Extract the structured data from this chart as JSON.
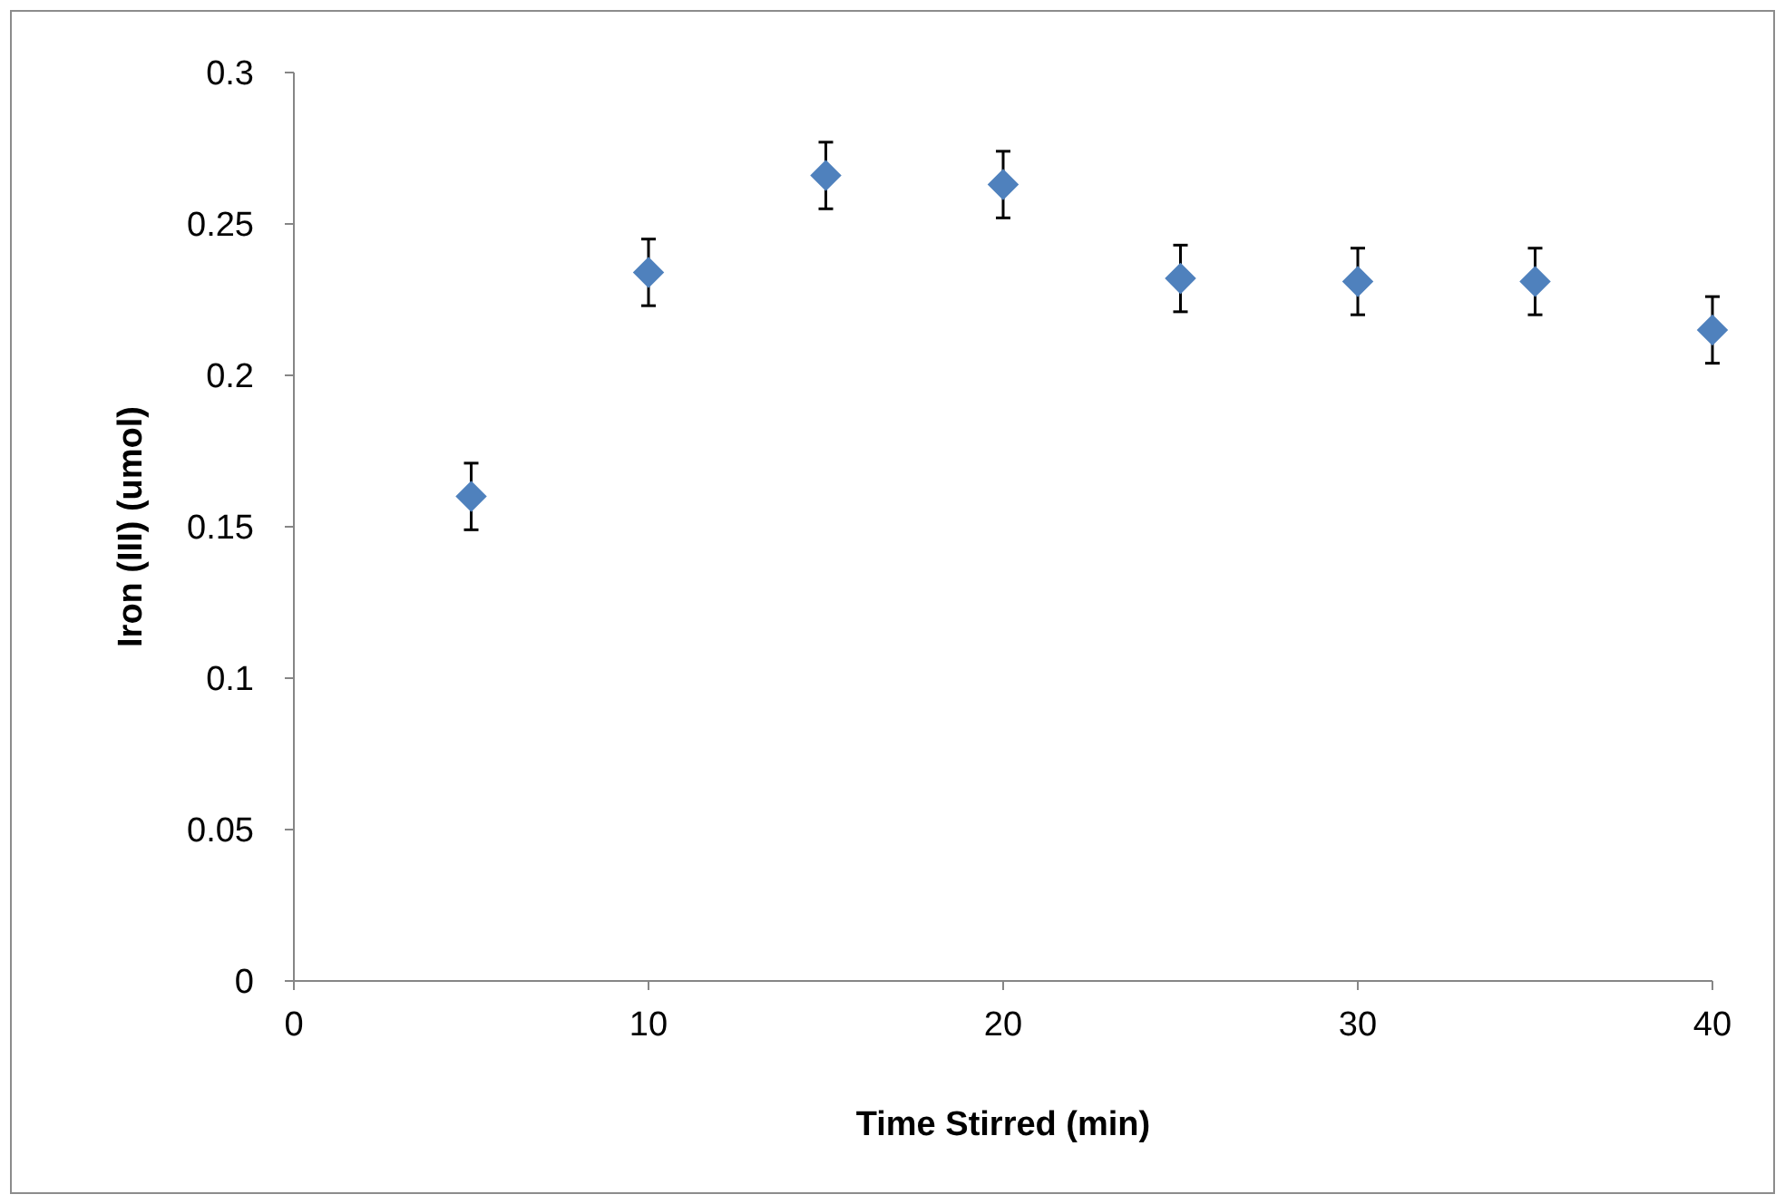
{
  "chart_data": {
    "type": "scatter",
    "xlabel": "Time Stirred (min)",
    "ylabel": "Iron (III) (umol)",
    "x": [
      5,
      10,
      15,
      20,
      25,
      30,
      35,
      40
    ],
    "series": [
      {
        "color": "#4f81bd",
        "values": [
          0.16,
          0.234,
          0.266,
          0.263,
          0.232,
          0.231,
          0.231,
          0.215
        ],
        "errors": [
          0.011,
          0.011,
          0.011,
          0.011,
          0.011,
          0.011,
          0.011,
          0.011
        ]
      }
    ],
    "xlim": [
      0,
      40
    ],
    "xticks": [
      0,
      10,
      20,
      30,
      40
    ],
    "ylim": [
      0,
      0.3
    ],
    "yticks": [
      0,
      0.05,
      0.1,
      0.15,
      0.2,
      0.25,
      0.3
    ],
    "marker": "diamond",
    "grid": false
  }
}
